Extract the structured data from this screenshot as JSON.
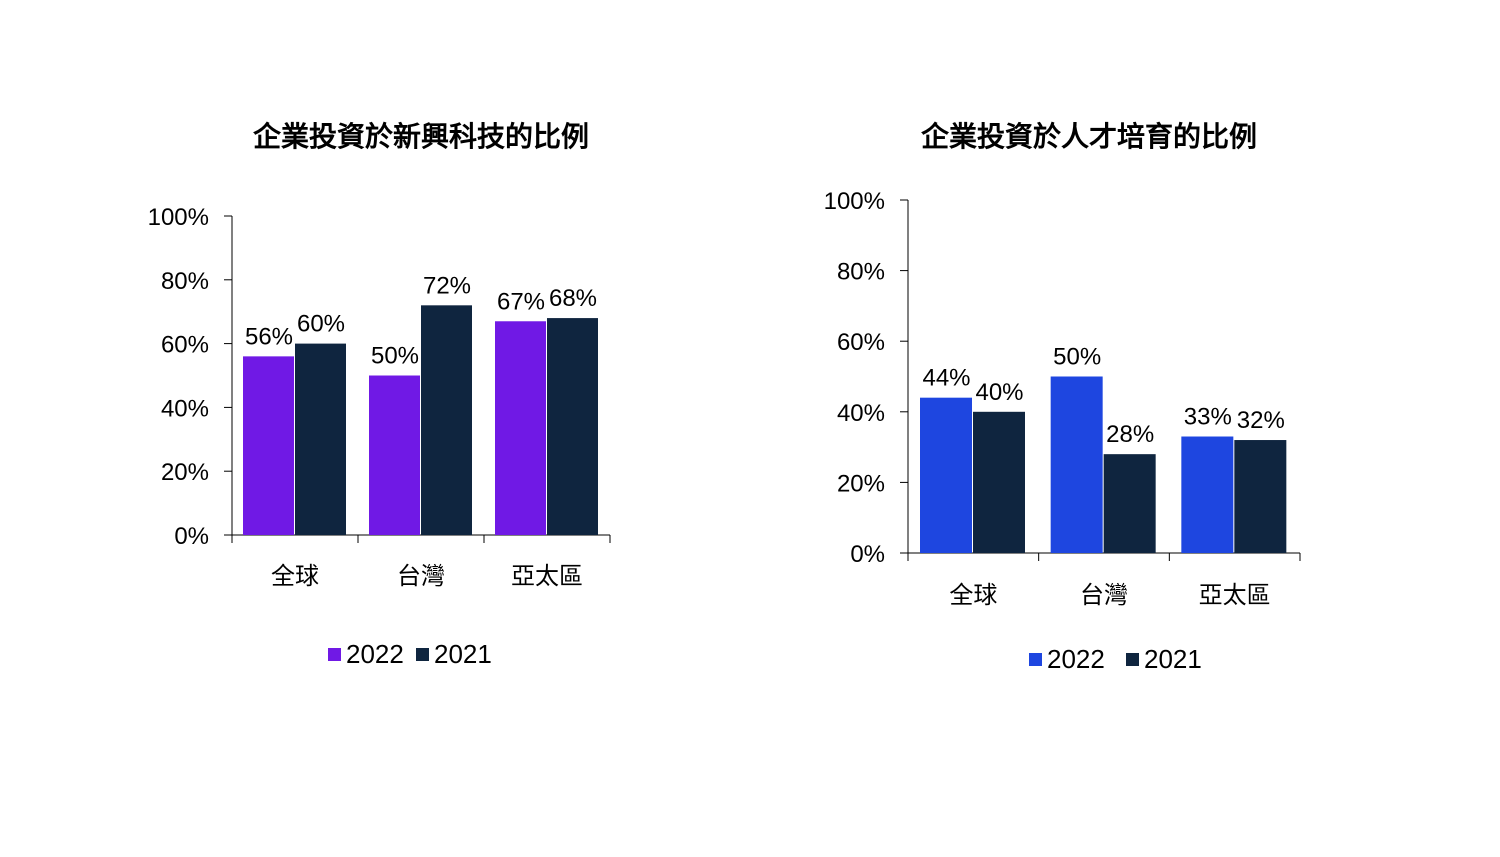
{
  "chart_data": [
    {
      "type": "bar",
      "title": "企業投資於新興科技的比例",
      "categories": [
        "全球",
        "台灣",
        "亞太區"
      ],
      "series": [
        {
          "name": "2022",
          "values": [
            56,
            50,
            67
          ],
          "color": "#7019E5"
        },
        {
          "name": "2021",
          "values": [
            60,
            72,
            68
          ],
          "color": "#0F253F"
        }
      ],
      "value_labels": [
        [
          "56%",
          "50%",
          "67%"
        ],
        [
          "60%",
          "72%",
          "68%"
        ]
      ],
      "ylim": [
        0,
        100
      ],
      "yticks": [
        0,
        20,
        40,
        60,
        80,
        100
      ],
      "ytick_labels": [
        "0%",
        "20%",
        "40%",
        "60%",
        "80%",
        "100%"
      ],
      "xlabel": "",
      "ylabel": "",
      "grid": false,
      "legend_position": "bottom"
    },
    {
      "type": "bar",
      "title": "企業投資於人才培育的比例",
      "categories": [
        "全球",
        "台灣",
        "亞太區"
      ],
      "series": [
        {
          "name": "2022",
          "values": [
            44,
            50,
            33
          ],
          "color": "#1E46E0"
        },
        {
          "name": "2021",
          "values": [
            40,
            28,
            32
          ],
          "color": "#0F253F"
        }
      ],
      "value_labels": [
        [
          "44%",
          "50%",
          "33%"
        ],
        [
          "40%",
          "28%",
          "32%"
        ]
      ],
      "ylim": [
        0,
        100
      ],
      "yticks": [
        0,
        20,
        40,
        60,
        80,
        100
      ],
      "ytick_labels": [
        "0%",
        "20%",
        "40%",
        "60%",
        "80%",
        "100%"
      ],
      "xlabel": "",
      "ylabel": "",
      "grid": false,
      "legend_position": "bottom"
    }
  ]
}
